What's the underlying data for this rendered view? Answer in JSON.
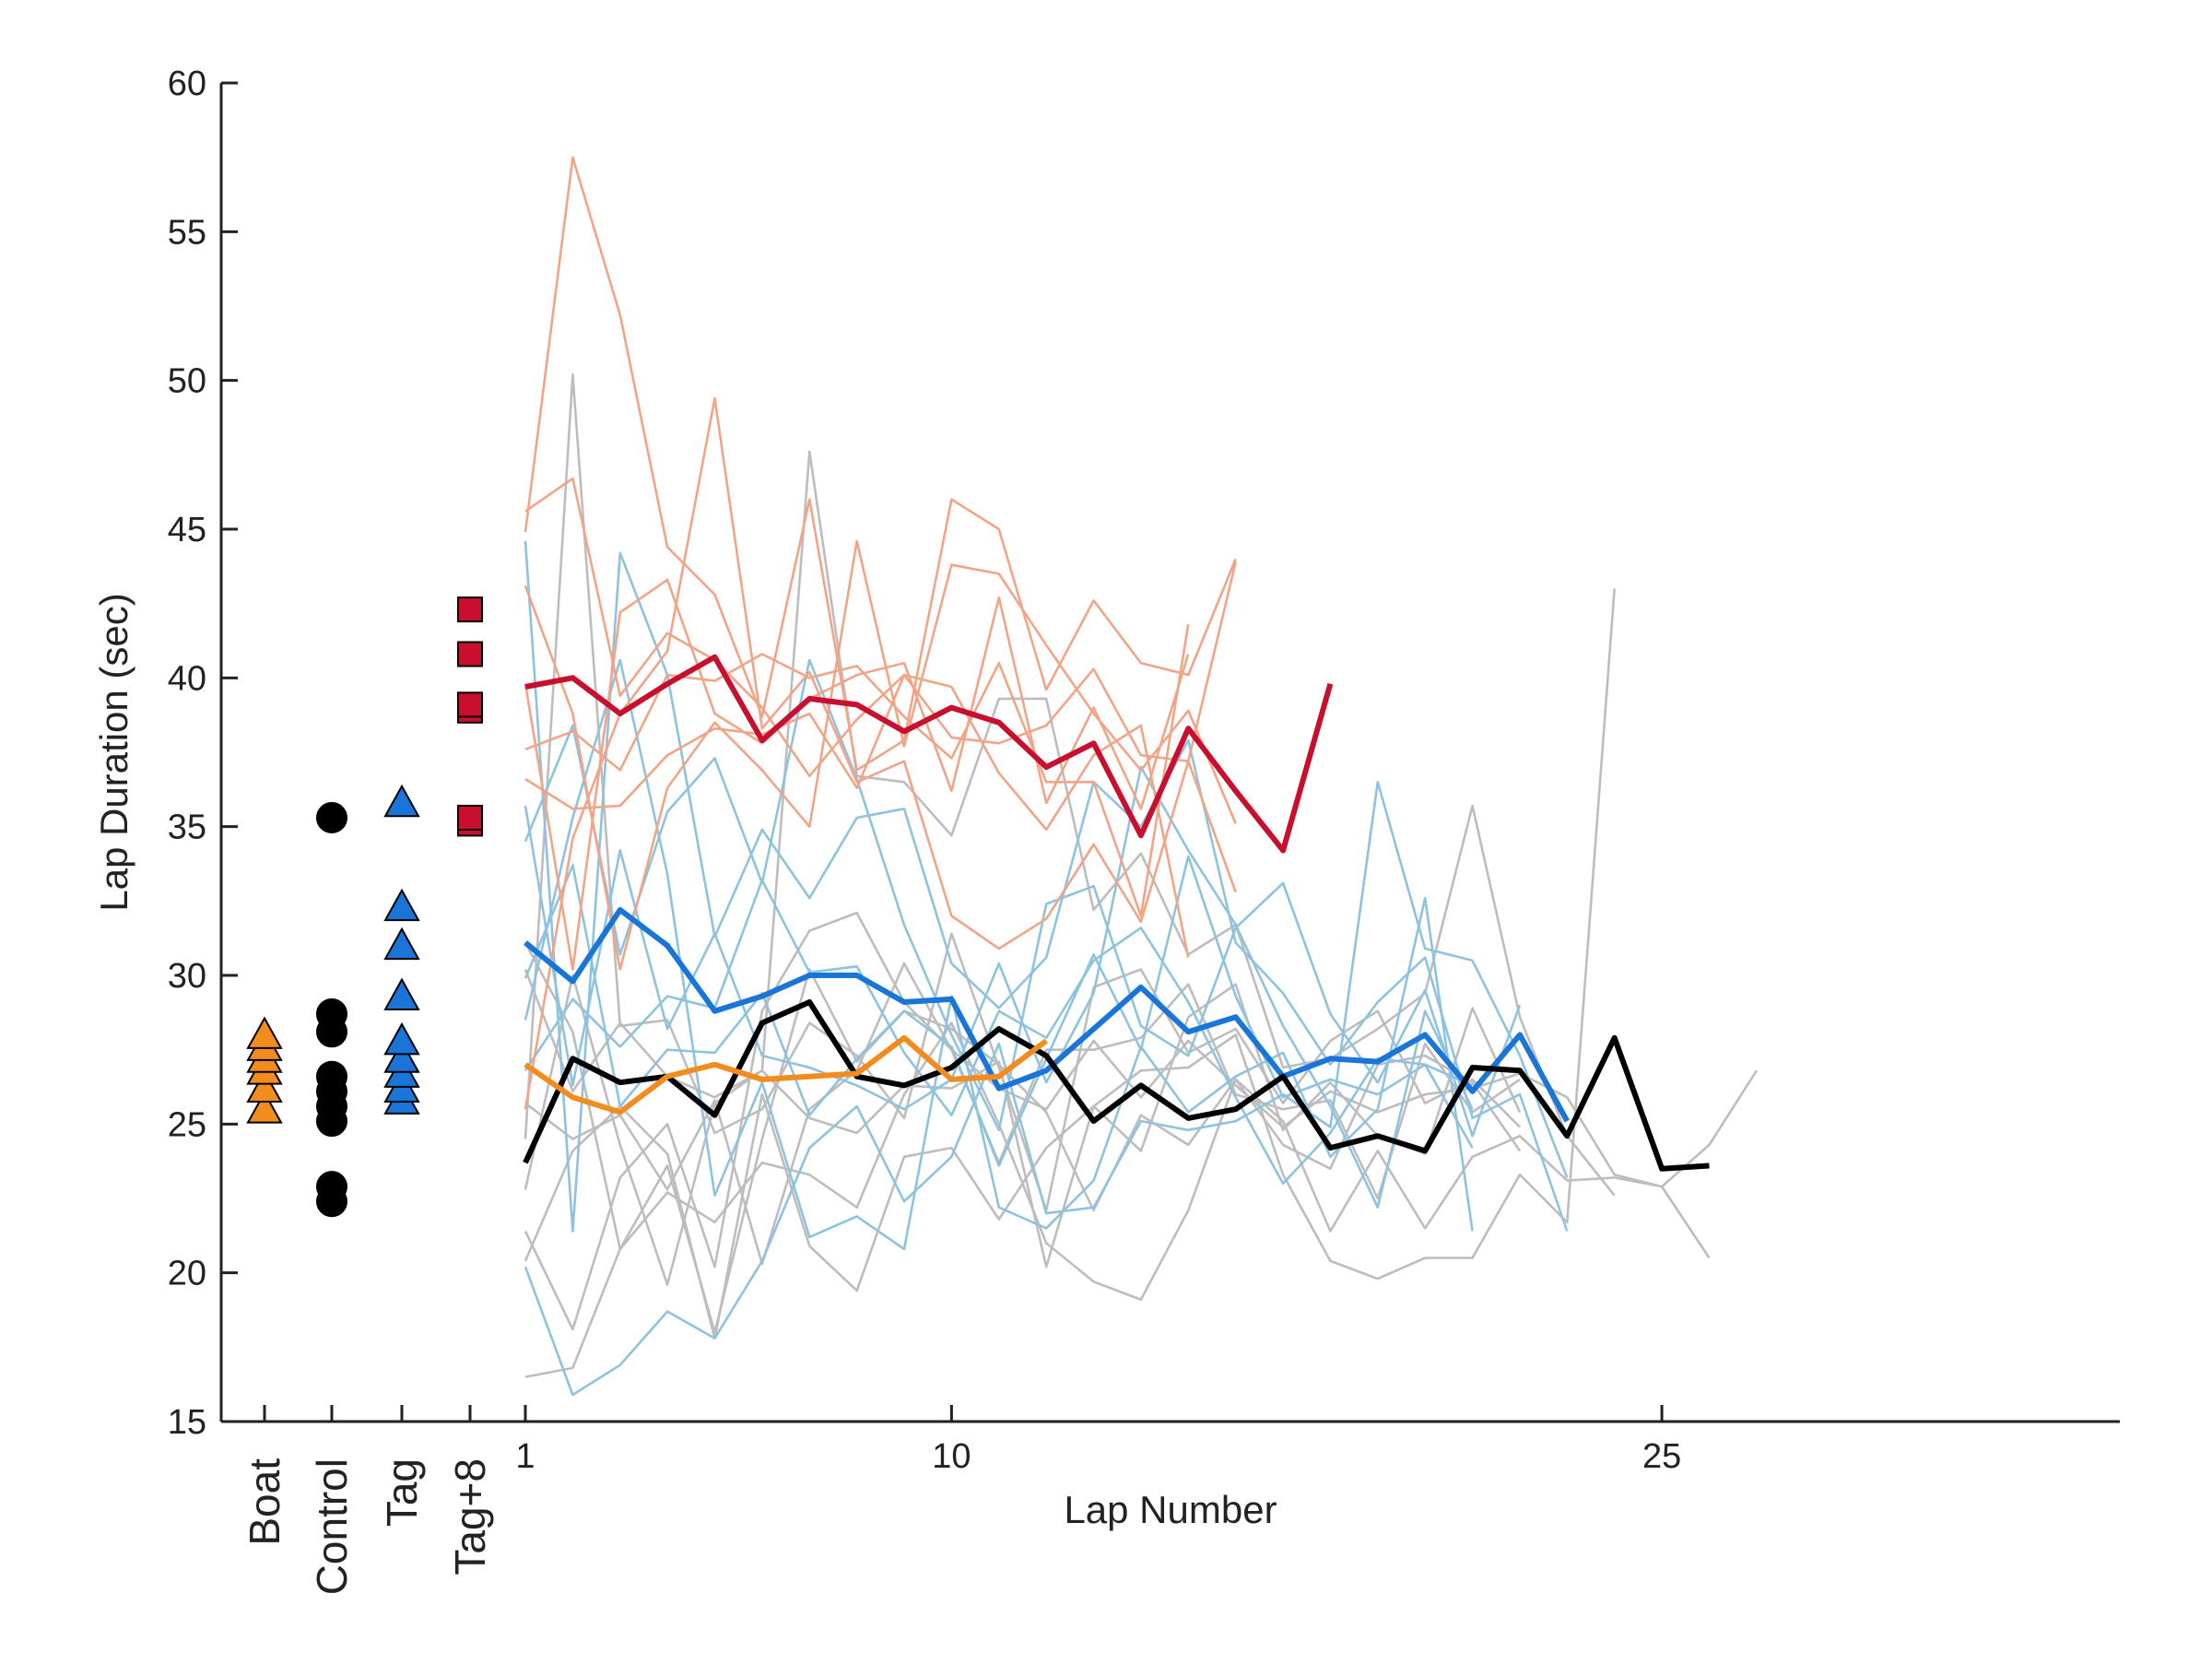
{
  "chart_data": {
    "type": "line",
    "xlabel": "Lap Number",
    "ylabel": "Lap Duration (sec)",
    "ylim": [
      15,
      60
    ],
    "xlim": [
      1,
      30
    ],
    "yticks": [
      15,
      20,
      25,
      30,
      35,
      40,
      45,
      50,
      55,
      60
    ],
    "xticks": [
      "1",
      "10",
      "25"
    ],
    "xtick_values": [
      1,
      10,
      25
    ],
    "grid": false,
    "legend": "none",
    "colors": {
      "boat": "#f28c1f",
      "control": "#000000",
      "tag": "#1a75d9",
      "tag8": "#c8102e",
      "boat_light": "#f2a487",
      "tag_light": "#8ec3e0",
      "control_light": "#bdbdbd"
    },
    "groups": [
      {
        "name": "Boat",
        "marker": "diamond-triangle",
        "color": "#f28c1f",
        "values": [
          25.5,
          26.2,
          26.8,
          27.2,
          27.6,
          28.0
        ]
      },
      {
        "name": "Control",
        "marker": "circle",
        "color": "#000000",
        "values": [
          22.4,
          22.9,
          25.1,
          25.6,
          26.1,
          26.6,
          28.1,
          28.7,
          35.3
        ]
      },
      {
        "name": "Tag",
        "marker": "triangle",
        "color": "#1a75d9",
        "values": [
          25.8,
          26.2,
          26.7,
          27.2,
          27.8,
          29.3,
          31.0,
          32.3,
          35.8
        ]
      },
      {
        "name": "Tag+8",
        "marker": "square",
        "color": "#c8102e",
        "values": [
          35.1,
          35.3,
          38.9,
          39.1,
          40.8,
          42.3
        ]
      }
    ],
    "series": [
      {
        "group": "tag8_mean",
        "color": "#c8102e",
        "width": 6,
        "x": [
          1,
          2,
          3,
          4,
          5,
          6,
          7,
          8,
          9,
          10,
          11,
          12,
          13,
          14,
          15,
          16,
          17,
          18
        ],
        "y": [
          39.7,
          40.0,
          38.8,
          39.8,
          40.7,
          37.9,
          39.3,
          39.1,
          38.2,
          39.0,
          38.5,
          37.0,
          37.8,
          34.7,
          38.3,
          36.2,
          34.2,
          39.8
        ]
      },
      {
        "group": "tag_mean",
        "color": "#1a75d9",
        "width": 6,
        "x": [
          1,
          2,
          3,
          4,
          5,
          6,
          7,
          8,
          9,
          10,
          11,
          12,
          13,
          14,
          15,
          16,
          17,
          18,
          19,
          20,
          21,
          22,
          23,
          24
        ],
        "y": [
          31.1,
          29.8,
          32.2,
          31.0,
          28.8,
          29.3,
          30.0,
          30.0,
          29.1,
          29.2,
          26.2,
          26.8,
          28.2,
          29.6,
          28.1,
          28.6,
          26.6,
          27.2,
          27.1,
          28.0,
          26.1,
          28.0,
          25.1,
          null
        ]
      },
      {
        "group": "control_mean",
        "color": "#000000",
        "width": 6,
        "x": [
          1,
          2,
          3,
          4,
          5,
          6,
          7,
          8,
          9,
          10,
          11,
          12,
          13,
          14,
          15,
          16,
          17,
          18,
          19,
          20,
          21,
          22,
          23,
          24,
          25,
          26,
          27
        ],
        "y": [
          23.7,
          27.2,
          26.4,
          26.6,
          25.3,
          28.4,
          29.1,
          26.6,
          26.3,
          26.9,
          28.2,
          27.3,
          25.1,
          26.3,
          25.2,
          25.5,
          26.6,
          24.2,
          24.6,
          24.1,
          26.9,
          26.8,
          24.6,
          27.9,
          23.5,
          23.6,
          null
        ]
      },
      {
        "group": "boat_mean",
        "color": "#f28c1f",
        "width": 6,
        "x": [
          1,
          2,
          3,
          4,
          5,
          6,
          7,
          8,
          9,
          10,
          11,
          12
        ],
        "y": [
          27.0,
          25.9,
          25.4,
          26.6,
          27.0,
          26.5,
          26.6,
          26.7,
          27.9,
          26.5,
          26.6,
          27.8
        ]
      }
    ],
    "thin_series": {
      "boat": [
        [
          45.6,
          46.7,
          39.4,
          41.5,
          40.6,
          39.0,
          36.7,
          38.6,
          40.1,
          38.0,
          37.8,
          38.4,
          40.3,
          37.4,
          37.2,
          43.9
        ],
        [
          44.9,
          57.5,
          52.2,
          44.4,
          42.8,
          38.7,
          46.0,
          36.9,
          37.9,
          46.0,
          45.0,
          39.6,
          42.6,
          40.5,
          40.1,
          44.0
        ],
        [
          43.1,
          38.8,
          30.2,
          36.3,
          38.5,
          36.9,
          35.0,
          44.6,
          37.7,
          43.8,
          43.5,
          41.1,
          38.8,
          36.9,
          38.9,
          35.1
        ],
        [
          37.6,
          38.2,
          36.9,
          40.1,
          39.9,
          40.8,
          40.0,
          40.4,
          38.7,
          37.3,
          40.5,
          36.5,
          36.5,
          32.0,
          41.8
        ],
        [
          36.6,
          35.6,
          35.7,
          37.4,
          38.3,
          38.1,
          38.8,
          36.3,
          40.1,
          39.7,
          36.8,
          34.9,
          37.4,
          38.4,
          30.6
        ],
        [
          25.5,
          34.6,
          38.8,
          40.9,
          49.4,
          38.3,
          40.2,
          36.5,
          37.2,
          32.0,
          30.9,
          31.9,
          34.4,
          31.8,
          37.2,
          32.8
        ],
        [
          39.8,
          30.2,
          42.2,
          43.3,
          38.8,
          37.8,
          39.3,
          40.1,
          40.5,
          36.2,
          42.7,
          35.8,
          39.0,
          35.6,
          40.8
        ]
      ],
      "tag": [
        [
          44.6,
          21.4,
          44.2,
          40.1,
          31.3,
          34.9,
          32.6,
          35.3,
          35.6,
          30.4,
          28.9,
          30.6,
          36.5,
          35.0,
          37.9,
          31.1,
          29.4,
          27.0,
          29.1,
          30.6,
          25.2,
          26.0,
          21.4
        ],
        [
          20.2,
          15.9,
          16.9,
          18.7,
          17.8,
          20.4,
          24.2,
          25.6,
          22.4,
          23.9,
          27.7,
          22.0,
          22.2,
          25.1,
          24.8,
          25.1,
          26.0,
          24.9,
          36.5,
          30.9,
          30.5,
          27.3,
          23.2
        ],
        [
          34.5,
          38.4,
          30.7,
          35.5,
          37.3,
          33.1,
          40.6,
          36.6,
          31.7,
          28.0,
          24.8,
          32.4,
          33.0,
          28.3,
          27.3,
          31.6,
          33.1,
          28.7,
          26.4,
          29.5,
          24.6,
          29.0
        ],
        [
          28.5,
          35.3,
          40.6,
          33.4,
          22.6,
          26.4,
          21.2,
          21.9,
          20.8,
          29.3,
          22.2,
          21.5,
          23.1,
          27.6,
          25.4,
          26.6,
          27.4,
          23.9,
          25.5,
          32.6,
          21.4
        ],
        [
          35.7,
          26.3,
          34.2,
          28.2,
          31.4,
          27.3,
          26.9,
          26.3,
          25.5,
          26.5,
          30.4,
          26.4,
          29.4,
          37.0,
          34.2,
          31.7,
          28.3,
          25.6,
          22.2,
          28.8,
          25.5
        ],
        [
          26.8,
          29.2,
          27.6,
          29.3,
          28.9,
          33.2,
          30.1,
          30.3,
          27.4,
          25.3,
          28.8,
          27.9,
          30.5,
          31.6,
          29.1,
          25.9,
          23.0,
          24.7,
          27.2,
          27.0,
          24.2
        ],
        [
          29.9,
          33.7,
          25.6,
          27.5,
          27.4,
          29.4,
          25.3,
          27.2,
          28.8,
          27.6,
          23.6,
          27.2,
          30.7,
          27.5,
          34.0,
          29.3,
          25.9,
          26.5,
          26.0,
          27.0,
          26.3
        ]
      ],
      "control": [
        [
          16.5,
          16.8,
          20.8,
          23.6,
          18.0,
          24.5,
          30.2,
          27.1,
          28.8,
          28.2,
          27.0,
          25.4,
          22.1,
          25.3,
          24.3,
          26.5,
          25.1,
          21.4,
          24.1,
          21.5,
          23.9,
          24.6,
          23.1,
          23.2,
          22.9,
          24.3,
          26.8
        ],
        [
          20.4,
          24.1,
          25.6,
          24.0,
          17.8,
          26.0,
          20.9,
          19.4,
          23.9,
          24.2,
          21.8,
          24.2,
          25.6,
          26.8,
          26.9,
          28.0,
          23.3,
          20.4,
          19.8,
          20.5,
          20.5,
          23.3,
          21.7,
          43.0
        ],
        [
          21.4,
          18.1,
          23.2,
          25.0,
          20.2,
          28.8,
          31.5,
          32.1,
          29.1,
          27.5,
          26.2,
          25.5,
          27.8,
          25.9,
          27.8,
          26.3,
          24.9,
          26.1,
          25.4,
          26.0,
          26.2,
          26.7,
          25.9,
          23.3,
          22.9,
          20.5
        ],
        [
          22.8,
          30.0,
          24.3,
          19.6,
          25.7,
          26.8,
          47.6,
          36.7,
          36.5,
          34.7,
          39.3,
          39.3,
          32.2,
          34.1,
          30.7,
          31.7,
          26.9,
          27.2,
          28.2,
          29.4,
          35.7,
          28.6,
          24.6,
          22.6
        ],
        [
          24.5,
          50.2,
          28.3,
          28.5,
          24.7,
          25.5,
          28.4,
          27.3,
          25.2,
          31.4,
          26.9,
          22.1,
          29.6,
          30.2,
          27.4,
          28.2,
          25.7,
          27.8,
          28.8,
          25.7,
          26.5,
          24.9
        ],
        [
          25.7,
          24.5,
          25.3,
          22.8,
          25.8,
          20.3,
          25.5,
          26.8,
          30.4,
          27.5,
          23.7,
          27.5,
          27.5,
          27.9,
          29.7,
          26.0,
          25.5,
          25.8,
          22.5,
          27.7,
          25.4,
          26.5
        ],
        [
          30.2,
          26.1,
          28.4,
          26.6,
          25.9,
          26.8,
          25.2,
          24.7,
          26.3,
          26.2,
          27.1,
          20.2,
          25.6,
          24.1,
          28.6,
          29.7,
          24.8,
          26.4,
          24.6,
          24.0,
          28.9,
          25.4
        ],
        [
          31.1,
          28.1,
          20.8,
          22.7,
          21.7,
          23.7,
          23.3,
          22.2,
          26.0,
          28.4,
          25.0,
          21.0,
          19.7,
          19.1,
          22.1,
          26.5,
          24.3,
          23.5,
          27.0,
          27.3,
          26.4,
          24.1
        ]
      ]
    }
  }
}
